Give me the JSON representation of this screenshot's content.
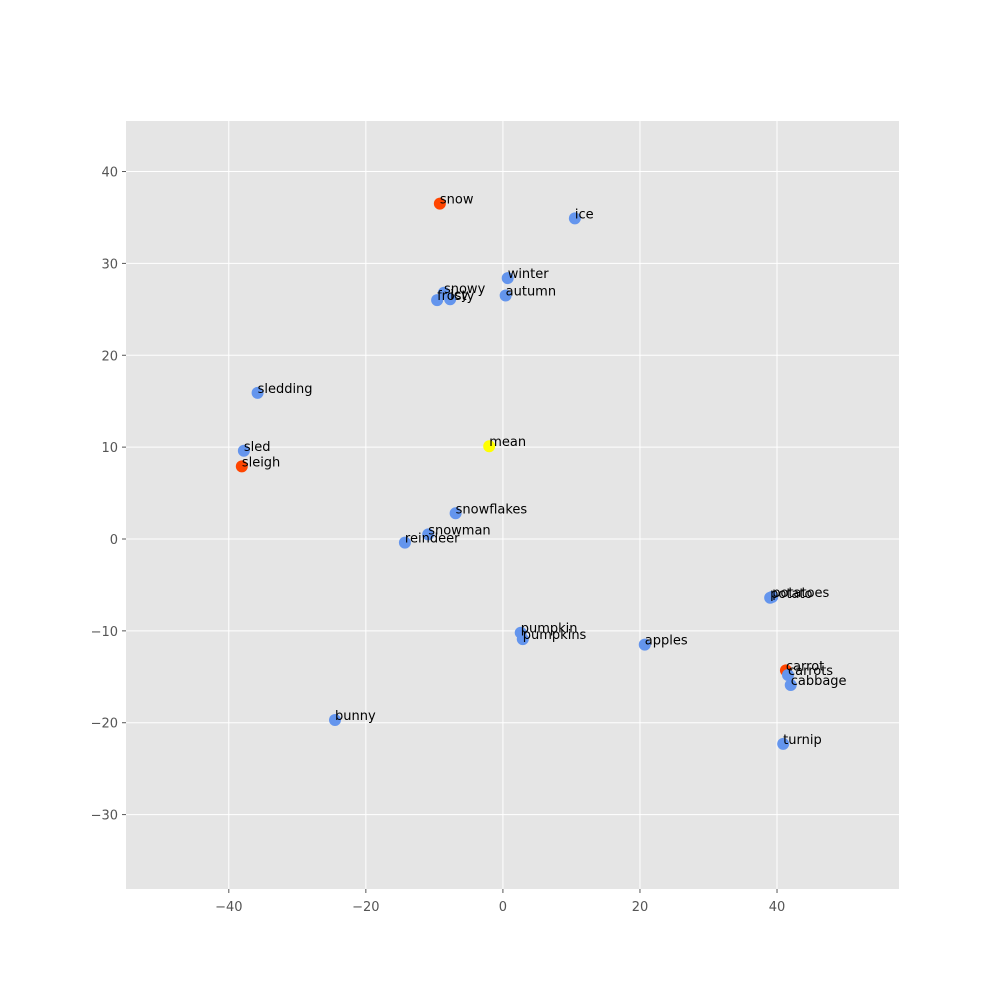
{
  "chart_data": {
    "type": "scatter",
    "xlim": [
      -55,
      57.8
    ],
    "ylim": [
      -38.1,
      45.5
    ],
    "xticks": [
      {
        "value": -40,
        "label": "−40"
      },
      {
        "value": -20,
        "label": "−20"
      },
      0,
      20,
      40
    ],
    "yticks": [
      {
        "value": -30,
        "label": "−30"
      },
      {
        "value": -20,
        "label": "−20"
      },
      {
        "value": -10,
        "label": "−10"
      },
      0,
      10,
      20,
      30,
      40
    ],
    "grid": true,
    "points": [
      {
        "label": "snow",
        "x": -9.2,
        "y": 36.5,
        "color": "#ff4500"
      },
      {
        "label": "ice",
        "x": 10.5,
        "y": 34.9,
        "color": "#6495ed"
      },
      {
        "label": "winter",
        "x": 0.7,
        "y": 28.4,
        "color": "#6495ed"
      },
      {
        "label": "autumn",
        "x": 0.4,
        "y": 26.5,
        "color": "#6495ed"
      },
      {
        "label": "snowy",
        "x": -8.6,
        "y": 26.8,
        "color": "#6495ed"
      },
      {
        "label": "frosty",
        "x": -9.6,
        "y": 26.0,
        "color": "#6495ed"
      },
      {
        "label": "icy",
        "x": -7.7,
        "y": 26.1,
        "color": "#6495ed"
      },
      {
        "label": "sledding",
        "x": -35.8,
        "y": 15.9,
        "color": "#6495ed"
      },
      {
        "label": "sled",
        "x": -37.8,
        "y": 9.6,
        "color": "#6495ed"
      },
      {
        "label": "sleigh",
        "x": -38.1,
        "y": 7.9,
        "color": "#ff4500"
      },
      {
        "label": "mean",
        "x": -2.0,
        "y": 10.1,
        "color": "#ffff00"
      },
      {
        "label": "snowflakes",
        "x": -6.9,
        "y": 2.8,
        "color": "#6495ed"
      },
      {
        "label": "snowman",
        "x": -10.9,
        "y": 0.5,
        "color": "#6495ed"
      },
      {
        "label": "reindeer",
        "x": -14.3,
        "y": -0.4,
        "color": "#6495ed"
      },
      {
        "label": "potato",
        "x": 39.0,
        "y": -6.4,
        "color": "#6495ed"
      },
      {
        "label": "potatoes",
        "x": 39.3,
        "y": -6.3,
        "color": "#6495ed"
      },
      {
        "label": "pumpkin",
        "x": 2.6,
        "y": -10.2,
        "color": "#6495ed"
      },
      {
        "label": "pumpkins",
        "x": 2.9,
        "y": -10.9,
        "color": "#6495ed"
      },
      {
        "label": "apples",
        "x": 20.7,
        "y": -11.5,
        "color": "#6495ed"
      },
      {
        "label": "carrot",
        "x": 41.3,
        "y": -14.3,
        "color": "#ff4500"
      },
      {
        "label": "carrots",
        "x": 41.6,
        "y": -14.8,
        "color": "#6495ed"
      },
      {
        "label": "cabbage",
        "x": 42.0,
        "y": -15.9,
        "color": "#6495ed"
      },
      {
        "label": "turnip",
        "x": 40.9,
        "y": -22.3,
        "color": "#6495ed"
      },
      {
        "label": "bunny",
        "x": -24.5,
        "y": -19.7,
        "color": "#6495ed"
      }
    ]
  }
}
